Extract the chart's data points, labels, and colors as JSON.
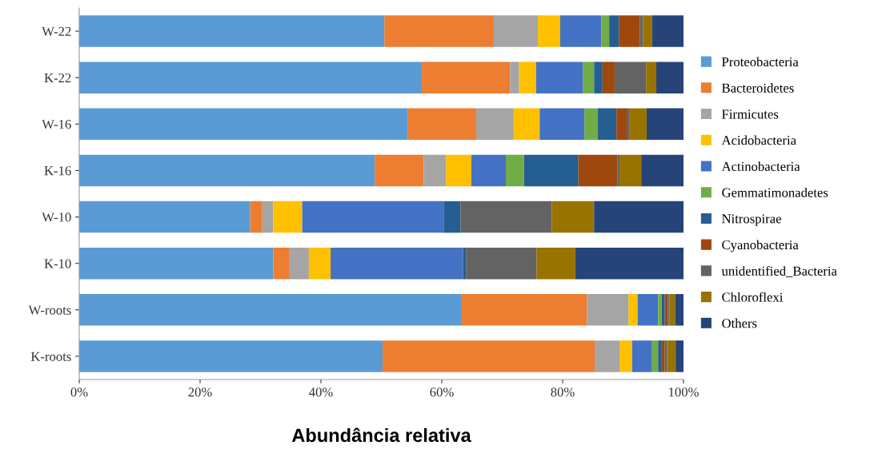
{
  "chart_data": {
    "type": "bar",
    "orientation": "horizontal",
    "stacked": true,
    "xlabel": "Abundância relativa",
    "categories": [
      "W-22",
      "K-22",
      "W-16",
      "K-16",
      "W-10",
      "K-10",
      "W-roots",
      "K-roots"
    ],
    "xlim": [
      0,
      100
    ],
    "xticks": [
      {
        "value": 0,
        "label": "0%"
      },
      {
        "value": 20,
        "label": "20%"
      },
      {
        "value": 40,
        "label": "40%"
      },
      {
        "value": 60,
        "label": "60%"
      },
      {
        "value": 80,
        "label": "80%"
      },
      {
        "value": 100,
        "label": "100%"
      }
    ],
    "grid": false,
    "legend": "right",
    "series": [
      {
        "name": "Proteobacteria",
        "color": "#5b9bd5",
        "values": [
          50.5,
          56.7,
          54.4,
          48.9,
          28.3,
          32.1,
          63.3,
          50.2
        ]
      },
      {
        "name": "Bacteroidetes",
        "color": "#ed7d31",
        "values": [
          18.1,
          14.6,
          11.3,
          8.1,
          2.0,
          2.6,
          20.7,
          35.1
        ]
      },
      {
        "name": "Firmicutes",
        "color": "#a5a5a5",
        "values": [
          7.3,
          1.5,
          6.2,
          3.7,
          1.8,
          3.3,
          6.9,
          4.1
        ]
      },
      {
        "name": "Acidobacteria",
        "color": "#ffc000",
        "values": [
          3.7,
          2.8,
          4.3,
          4.2,
          4.8,
          3.6,
          1.5,
          2.1
        ]
      },
      {
        "name": "Actinobacteria",
        "color": "#4472c4",
        "values": [
          6.8,
          7.8,
          7.4,
          5.7,
          23.4,
          21.9,
          3.4,
          3.3
        ]
      },
      {
        "name": "Gemmatimonadetes",
        "color": "#70ad47",
        "values": [
          1.3,
          1.8,
          2.2,
          3.0,
          0,
          0,
          0.6,
          1.0
        ]
      },
      {
        "name": "Nitrospirae",
        "color": "#255e91",
        "values": [
          1.6,
          1.4,
          3.1,
          9.0,
          2.8,
          0.5,
          0.5,
          0.6
        ]
      },
      {
        "name": "Cyanobacteria",
        "color": "#9e480e",
        "values": [
          3.5,
          2.0,
          1.7,
          6.5,
          0,
          0,
          0.5,
          0.5
        ]
      },
      {
        "name": "unidentified_Bacteria",
        "color": "#636363",
        "values": [
          0.5,
          5.2,
          0.5,
          0.3,
          15.1,
          11.7,
          0.3,
          0.4
        ]
      },
      {
        "name": "Chloroflexi",
        "color": "#997300",
        "values": [
          1.5,
          1.7,
          2.8,
          3.6,
          7.0,
          6.4,
          0.9,
          1.4
        ]
      },
      {
        "name": "Others",
        "color": "#264478",
        "values": [
          5.2,
          4.5,
          6.1,
          7.0,
          14.8,
          17.9,
          1.4,
          1.3
        ]
      }
    ]
  }
}
